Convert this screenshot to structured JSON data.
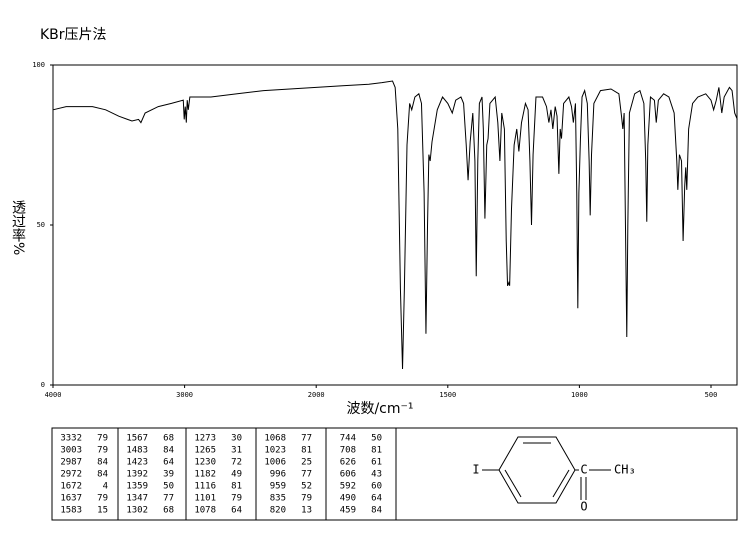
{
  "chart_data": {
    "type": "line",
    "title": "KBr压片法",
    "y_label": "透过率%",
    "x_label": "波数/cm⁻¹",
    "xlim": [
      4000,
      400
    ],
    "xticks": [
      4000,
      3000,
      2000,
      1500,
      1000,
      500
    ],
    "ylim": [
      0,
      100
    ],
    "yticks": [
      0,
      50,
      100
    ],
    "color": "#000000",
    "x": [
      4000,
      3900,
      3700,
      3600,
      3500,
      3400,
      3350,
      3332,
      3300,
      3200,
      3100,
      3010,
      3003,
      2995,
      2987,
      2980,
      2972,
      2960,
      2800,
      2600,
      2400,
      2200,
      2000,
      1900,
      1800,
      1750,
      1710,
      1700,
      1690,
      1680,
      1672,
      1665,
      1655,
      1645,
      1637,
      1625,
      1610,
      1600,
      1590,
      1583,
      1577,
      1572,
      1567,
      1560,
      1540,
      1520,
      1500,
      1483,
      1470,
      1450,
      1440,
      1430,
      1423,
      1415,
      1405,
      1397,
      1392,
      1386,
      1380,
      1370,
      1365,
      1359,
      1352,
      1347,
      1340,
      1320,
      1310,
      1302,
      1295,
      1285,
      1278,
      1273,
      1268,
      1265,
      1258,
      1248,
      1238,
      1230,
      1220,
      1205,
      1195,
      1188,
      1182,
      1176,
      1165,
      1140,
      1125,
      1116,
      1108,
      1101,
      1092,
      1085,
      1078,
      1073,
      1068,
      1060,
      1040,
      1030,
      1023,
      1015,
      1010,
      1006,
      1002,
      996,
      990,
      980,
      970,
      963,
      959,
      954,
      945,
      920,
      880,
      850,
      840,
      835,
      830,
      825,
      820,
      816,
      810,
      790,
      770,
      755,
      748,
      744,
      740,
      730,
      715,
      708,
      700,
      680,
      660,
      640,
      630,
      626,
      620,
      612,
      606,
      600,
      596,
      592,
      585,
      570,
      550,
      520,
      500,
      490,
      480,
      470,
      459,
      450,
      430,
      420,
      410,
      400
    ],
    "values": [
      86,
      87,
      87,
      86,
      84,
      82.5,
      83,
      82,
      85,
      87,
      88,
      89,
      83,
      87,
      82,
      89,
      86,
      90,
      90,
      91,
      92,
      92.5,
      93,
      93.5,
      94,
      94.5,
      95,
      93,
      80,
      30,
      5,
      30,
      75,
      88,
      86,
      90,
      91,
      88,
      60,
      16,
      50,
      72,
      70,
      76,
      86,
      90,
      88,
      85,
      89,
      90,
      88,
      75,
      64,
      76,
      85,
      70,
      34,
      70,
      88,
      90,
      80,
      52,
      75,
      77,
      88,
      90,
      82,
      70,
      85,
      80,
      45,
      31,
      32,
      31,
      55,
      75,
      80,
      73,
      82,
      88,
      86,
      70,
      50,
      72,
      90,
      90,
      87,
      82,
      86,
      80,
      87,
      84,
      66,
      80,
      77,
      88,
      90,
      87,
      82,
      88,
      60,
      24,
      60,
      77,
      90,
      92,
      88,
      70,
      53,
      72,
      88,
      92,
      92.5,
      91,
      84,
      80,
      85,
      50,
      15,
      50,
      85,
      91,
      92,
      88,
      70,
      51,
      75,
      90,
      89,
      82,
      89,
      91,
      90,
      85,
      70,
      61,
      72,
      70,
      45,
      62,
      68,
      61,
      80,
      88,
      90,
      91,
      89,
      86,
      89,
      93,
      85,
      90,
      93,
      92,
      85,
      83
    ]
  },
  "peaks": [
    [
      3332,
      79
    ],
    [
      3003,
      79
    ],
    [
      2987,
      84
    ],
    [
      2972,
      84
    ],
    [
      1672,
      4
    ],
    [
      1637,
      79
    ],
    [
      1583,
      15
    ],
    [
      1567,
      68
    ],
    [
      1483,
      84
    ],
    [
      1423,
      64
    ],
    [
      1392,
      39
    ],
    [
      1359,
      50
    ],
    [
      1347,
      77
    ],
    [
      1302,
      68
    ],
    [
      1273,
      30
    ],
    [
      1265,
      31
    ],
    [
      1230,
      72
    ],
    [
      1182,
      49
    ],
    [
      1116,
      81
    ],
    [
      1101,
      79
    ],
    [
      1078,
      64
    ],
    [
      1068,
      77
    ],
    [
      1023,
      81
    ],
    [
      1006,
      25
    ],
    [
      996,
      77
    ],
    [
      959,
      52
    ],
    [
      835,
      79
    ],
    [
      820,
      13
    ],
    [
      744,
      50
    ],
    [
      708,
      81
    ],
    [
      626,
      61
    ],
    [
      606,
      43
    ],
    [
      592,
      60
    ],
    [
      490,
      64
    ],
    [
      459,
      84
    ]
  ],
  "structure": {
    "labels": [
      "I",
      "C",
      "CH₃",
      "O"
    ]
  }
}
